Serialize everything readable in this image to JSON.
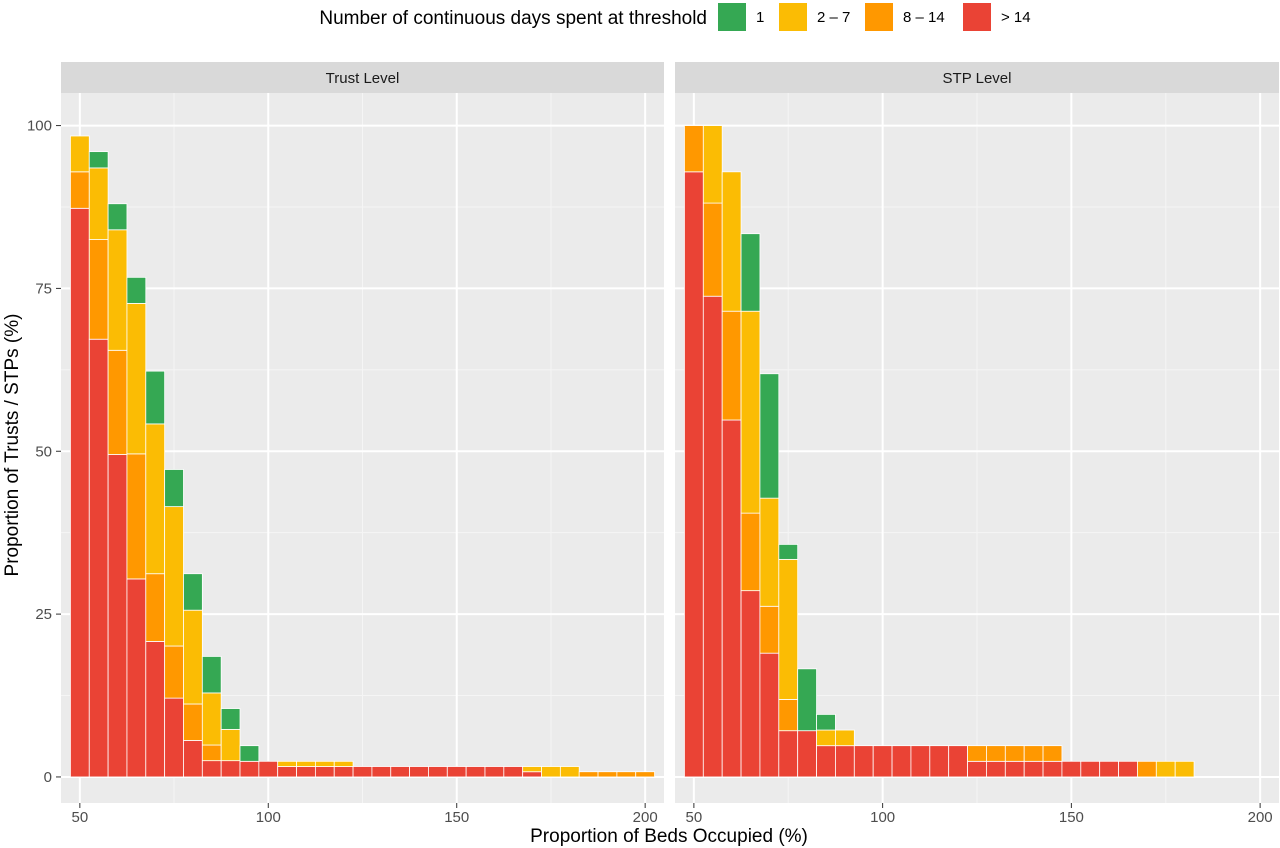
{
  "chart_data": {
    "type": "bar",
    "stacked": true,
    "xlabel": "Proportion of Beds Occupied (%)",
    "ylabel": "Proportion of  Trusts / STPs (%)",
    "legend": {
      "title": "Number of continuous days spent at threshold",
      "position": "top",
      "entries": [
        {
          "label": "1",
          "color": "#35A853"
        },
        {
          "label": "2 – 7",
          "color": "#FBBC04"
        },
        {
          "label": "8 – 14",
          "color": "#FF9800"
        },
        {
          "label": "> 14",
          "color": "#EA4335"
        }
      ]
    },
    "grid": true,
    "x_ticks": [
      50,
      100,
      150,
      200
    ],
    "y_ticks": [
      0,
      25,
      50,
      75,
      100
    ],
    "xlim": [
      45,
      205
    ],
    "ylim": [
      -4,
      105
    ],
    "panels": [
      {
        "title": "Trust Level",
        "x": [
          50,
          55,
          60,
          65,
          70,
          75,
          80,
          85,
          90,
          95,
          100,
          105,
          110,
          115,
          120,
          125,
          130,
          135,
          140,
          145,
          150,
          155,
          160,
          165,
          170,
          175,
          180,
          185,
          190,
          195,
          200
        ],
        "series": [
          {
            "name": "> 14",
            "values": [
              87.3,
              67.2,
              49.5,
              30.4,
              20.8,
              12.1,
              5.6,
              2.5,
              2.5,
              2.4,
              2.4,
              1.6,
              1.6,
              1.6,
              1.6,
              1.6,
              1.6,
              1.6,
              1.6,
              1.6,
              1.6,
              1.6,
              1.6,
              1.6,
              0.8,
              0,
              0,
              0,
              0,
              0,
              0
            ]
          },
          {
            "name": "8 – 14",
            "values": [
              5.6,
              15.3,
              16.0,
              19.2,
              10.4,
              8.0,
              5.6,
              2.4,
              0,
              0,
              0,
              0,
              0,
              0,
              0,
              0,
              0,
              0,
              0,
              0,
              0,
              0,
              0,
              0,
              0,
              0,
              0,
              0.8,
              0.8,
              0.8,
              0.8
            ]
          },
          {
            "name": "2 – 7",
            "values": [
              5.5,
              11.0,
              18.5,
              23.1,
              23.0,
              21.4,
              14.4,
              8.0,
              4.8,
              0,
              0,
              0.8,
              0.8,
              0.8,
              0.8,
              0,
              0,
              0,
              0,
              0,
              0,
              0,
              0,
              0,
              0.8,
              1.6,
              1.6,
              0,
              0,
              0,
              0
            ]
          },
          {
            "name": "1",
            "values": [
              0,
              2.5,
              4.0,
              4.0,
              8.1,
              5.7,
              5.6,
              5.6,
              3.2,
              2.4,
              0,
              0,
              0,
              0,
              0,
              0,
              0,
              0,
              0,
              0,
              0,
              0,
              0,
              0,
              0,
              0,
              0,
              0,
              0,
              0,
              0
            ]
          }
        ]
      },
      {
        "title": "STP Level",
        "x": [
          50,
          55,
          60,
          65,
          70,
          75,
          80,
          85,
          90,
          95,
          100,
          105,
          110,
          115,
          120,
          125,
          130,
          135,
          140,
          145,
          150,
          155,
          160,
          165,
          170,
          175,
          180,
          185,
          190,
          195,
          200
        ],
        "series": [
          {
            "name": "> 14",
            "values": [
              92.9,
              73.8,
              54.8,
              28.6,
              19.0,
              7.1,
              7.1,
              4.8,
              4.8,
              4.8,
              4.8,
              4.8,
              4.8,
              4.8,
              4.8,
              2.4,
              2.4,
              2.4,
              2.4,
              2.4,
              2.4,
              2.4,
              2.4,
              2.4,
              0,
              0,
              0,
              0,
              0,
              0,
              0
            ]
          },
          {
            "name": "8 – 14",
            "values": [
              7.1,
              14.3,
              16.7,
              11.9,
              7.2,
              4.8,
              0,
              0,
              0,
              0,
              0,
              0,
              0,
              0,
              0,
              2.4,
              2.4,
              2.4,
              2.4,
              2.4,
              0,
              0,
              0,
              0,
              2.4,
              0,
              0,
              0,
              0,
              0,
              0
            ]
          },
          {
            "name": "2 – 7",
            "values": [
              0,
              11.9,
              21.4,
              31.0,
              16.6,
              21.5,
              0,
              2.4,
              2.4,
              0,
              0,
              0,
              0,
              0,
              0,
              0,
              0,
              0,
              0,
              0,
              0,
              0,
              0,
              0,
              0,
              2.4,
              2.4,
              0,
              0,
              0,
              0
            ]
          },
          {
            "name": "1",
            "values": [
              0,
              0,
              0,
              11.9,
              19.1,
              2.3,
              9.5,
              2.4,
              0,
              0,
              0,
              0,
              0,
              0,
              0,
              0,
              0,
              0,
              0,
              0,
              0,
              0,
              0,
              0,
              0,
              0,
              0,
              0,
              0,
              0,
              0
            ]
          }
        ]
      }
    ]
  }
}
